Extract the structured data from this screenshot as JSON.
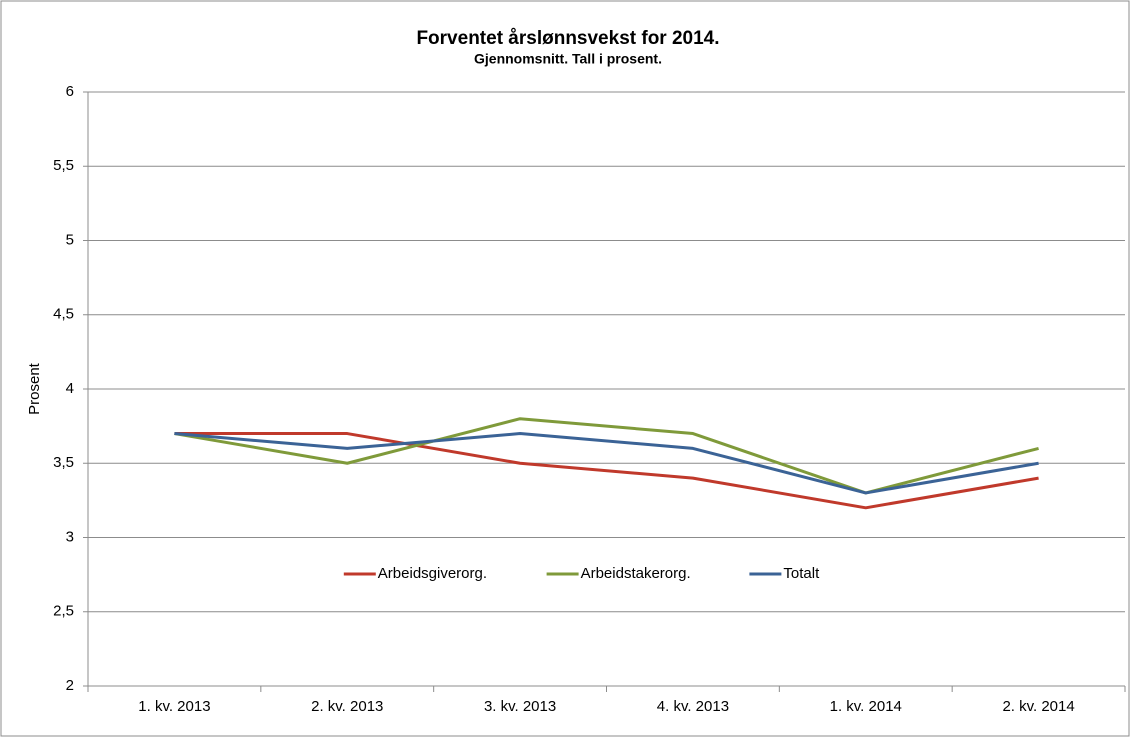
{
  "chart_data": {
    "type": "line",
    "title": "Forventet årslønnsvekst for 2014.",
    "subtitle": "Gjennomsnitt. Tall i prosent.",
    "y_label": "Prosent",
    "categories": [
      "1. kv. 2013",
      "2. kv. 2013",
      "3. kv. 2013",
      "4. kv. 2013",
      "1. kv. 2014",
      "2. kv. 2014"
    ],
    "series": [
      {
        "name": "Arbeidsgiverorg.",
        "color": "#c0392b",
        "values": [
          3.7,
          3.7,
          3.5,
          3.4,
          3.2,
          3.4
        ]
      },
      {
        "name": "Arbeidstakerorg.",
        "color": "#7f9a3a",
        "values": [
          3.7,
          3.5,
          3.8,
          3.7,
          3.3,
          3.6
        ]
      },
      {
        "name": "Totalt",
        "color": "#3b6396",
        "values": [
          3.7,
          3.6,
          3.7,
          3.6,
          3.3,
          3.5
        ]
      }
    ],
    "ylim": [
      2,
      6
    ],
    "yticks": [
      2,
      {
        "value": 2.5,
        "label": "2,5"
      },
      3,
      {
        "value": 3.5,
        "label": "3,5"
      },
      4,
      {
        "value": 4.5,
        "label": "4,5"
      },
      5,
      {
        "value": 5.5,
        "label": "5,5"
      },
      6
    ],
    "grid": true,
    "legend": "lower center"
  }
}
